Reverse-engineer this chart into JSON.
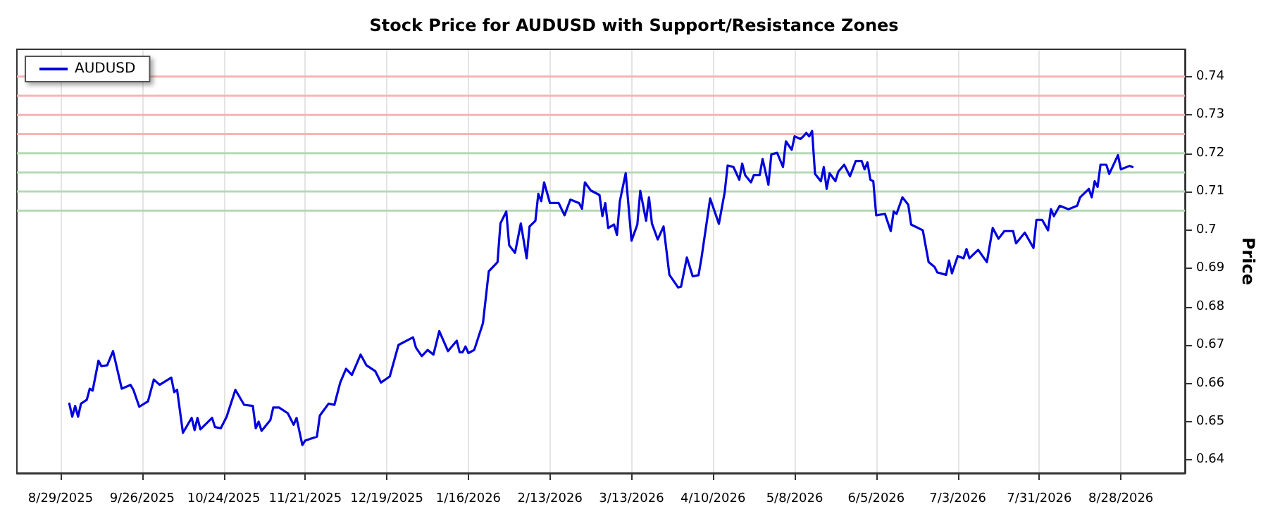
{
  "chart_data": {
    "type": "line",
    "title": "Stock Price for AUDUSD with Support/Resistance Zones",
    "ylabel": "Price",
    "x": [
      "2025-09-01",
      "2025-09-02",
      "2025-09-03",
      "2025-09-04",
      "2025-09-05",
      "2025-09-07",
      "2025-09-08",
      "2025-09-09",
      "2025-09-11",
      "2025-09-12",
      "2025-09-14",
      "2025-09-16",
      "2025-09-19",
      "2025-09-22",
      "2025-09-23",
      "2025-09-25",
      "2025-09-28",
      "2025-09-30",
      "2025-10-02",
      "2025-10-06",
      "2025-10-07",
      "2025-10-08",
      "2025-10-10",
      "2025-10-13",
      "2025-10-14",
      "2025-10-15",
      "2025-10-16",
      "2025-10-20",
      "2025-10-21",
      "2025-10-23",
      "2025-10-25",
      "2025-10-28",
      "2025-10-31",
      "2025-11-03",
      "2025-11-04",
      "2025-11-05",
      "2025-11-06",
      "2025-11-09",
      "2025-11-10",
      "2025-11-12",
      "2025-11-15",
      "2025-11-17",
      "2025-11-18",
      "2025-11-20",
      "2025-11-21",
      "2025-11-25",
      "2025-11-26",
      "2025-11-29",
      "2025-12-01",
      "2025-12-03",
      "2025-12-05",
      "2025-12-07",
      "2025-12-10",
      "2025-12-12",
      "2025-12-15",
      "2025-12-17",
      "2025-12-20",
      "2025-12-23",
      "2025-12-28",
      "2025-12-29",
      "2025-12-31",
      "2026-01-02",
      "2026-01-04",
      "2026-01-06",
      "2026-01-09",
      "2026-01-12",
      "2026-01-13",
      "2026-01-14",
      "2026-01-15",
      "2026-01-16",
      "2026-01-18",
      "2026-01-21",
      "2026-01-23",
      "2026-01-26",
      "2026-01-27",
      "2026-01-29",
      "2026-01-30",
      "2026-02-01",
      "2026-02-03",
      "2026-02-05",
      "2026-02-06",
      "2026-02-08",
      "2026-02-09",
      "2026-02-10",
      "2026-02-11",
      "2026-02-13",
      "2026-02-16",
      "2026-02-18",
      "2026-02-20",
      "2026-02-23",
      "2026-02-24",
      "2026-02-25",
      "2026-02-27",
      "2026-03-02",
      "2026-03-03",
      "2026-03-04",
      "2026-03-05",
      "2026-03-07",
      "2026-03-08",
      "2026-03-09",
      "2026-03-11",
      "2026-03-13",
      "2026-03-15",
      "2026-03-16",
      "2026-03-18",
      "2026-03-19",
      "2026-03-20",
      "2026-03-22",
      "2026-03-24",
      "2026-03-26",
      "2026-03-29",
      "2026-03-30",
      "2026-04-01",
      "2026-04-03",
      "2026-04-05",
      "2026-04-06",
      "2026-04-09",
      "2026-04-12",
      "2026-04-14",
      "2026-04-15",
      "2026-04-17",
      "2026-04-19",
      "2026-04-20",
      "2026-04-21",
      "2026-04-23",
      "2026-04-24",
      "2026-04-26",
      "2026-04-27",
      "2026-04-29",
      "2026-04-30",
      "2026-05-02",
      "2026-05-04",
      "2026-05-05",
      "2026-05-07",
      "2026-05-08",
      "2026-05-10",
      "2026-05-11",
      "2026-05-12",
      "2026-05-13",
      "2026-05-14",
      "2026-05-15",
      "2026-05-17",
      "2026-05-18",
      "2026-05-19",
      "2026-05-20",
      "2026-05-22",
      "2026-05-23",
      "2026-05-25",
      "2026-05-27",
      "2026-05-29",
      "2026-05-31",
      "2026-06-01",
      "2026-06-02",
      "2026-06-03",
      "2026-06-04",
      "2026-06-05",
      "2026-06-08",
      "2026-06-10",
      "2026-06-11",
      "2026-06-12",
      "2026-06-14",
      "2026-06-16",
      "2026-06-17",
      "2026-06-21",
      "2026-06-23",
      "2026-06-25",
      "2026-06-26",
      "2026-06-29",
      "2026-06-30",
      "2026-07-01",
      "2026-07-03",
      "2026-07-05",
      "2026-07-06",
      "2026-07-07",
      "2026-07-10",
      "2026-07-13",
      "2026-07-15",
      "2026-07-17",
      "2026-07-19",
      "2026-07-22",
      "2026-07-23",
      "2026-07-26",
      "2026-07-29",
      "2026-07-30",
      "2026-08-01",
      "2026-08-03",
      "2026-08-04",
      "2026-08-05",
      "2026-08-07",
      "2026-08-10",
      "2026-08-13",
      "2026-08-14",
      "2026-08-17",
      "2026-08-18",
      "2026-08-19",
      "2026-08-20",
      "2026-08-21",
      "2026-08-23",
      "2026-08-24",
      "2026-08-27",
      "2026-08-28",
      "2026-08-31",
      "2026-09-01"
    ],
    "series": [
      {
        "name": "AUDUSD",
        "color": "#0000dd",
        "values": [
          0.6547,
          0.6513,
          0.6541,
          0.6513,
          0.6547,
          0.6557,
          0.6586,
          0.6581,
          0.6659,
          0.6645,
          0.6647,
          0.6684,
          0.6586,
          0.6596,
          0.6583,
          0.6539,
          0.6553,
          0.661,
          0.6596,
          0.6615,
          0.6577,
          0.6583,
          0.6471,
          0.651,
          0.6478,
          0.651,
          0.648,
          0.651,
          0.6486,
          0.6483,
          0.6513,
          0.6583,
          0.6544,
          0.6541,
          0.6483,
          0.65,
          0.6476,
          0.6504,
          0.6537,
          0.6537,
          0.6522,
          0.6492,
          0.651,
          0.6439,
          0.6451,
          0.6461,
          0.6516,
          0.6547,
          0.6544,
          0.6602,
          0.6638,
          0.6622,
          0.6675,
          0.6647,
          0.6632,
          0.6602,
          0.6618,
          0.67,
          0.672,
          0.6693,
          0.6671,
          0.6687,
          0.6675,
          0.6736,
          0.6684,
          0.6711,
          0.6681,
          0.6681,
          0.6696,
          0.6679,
          0.6687,
          0.6757,
          0.6892,
          0.6916,
          0.7017,
          0.7048,
          0.696,
          0.694,
          0.7017,
          0.6926,
          0.7009,
          0.7024,
          0.7094,
          0.7075,
          0.7124,
          0.707,
          0.707,
          0.7038,
          0.7079,
          0.707,
          0.7055,
          0.7124,
          0.7103,
          0.7091,
          0.7036,
          0.707,
          0.7005,
          0.7014,
          0.6987,
          0.7075,
          0.7148,
          0.6972,
          0.7014,
          0.7102,
          0.7024,
          0.7085,
          0.7017,
          0.6975,
          0.7009,
          0.6883,
          0.685,
          0.6852,
          0.6928,
          0.6879,
          0.6882,
          0.6926,
          0.7082,
          0.7016,
          0.7099,
          0.7168,
          0.7164,
          0.7131,
          0.7173,
          0.7143,
          0.7124,
          0.7143,
          0.7143,
          0.7185,
          0.7118,
          0.7197,
          0.7201,
          0.7164,
          0.7231,
          0.7209,
          0.7244,
          0.7237,
          0.7244,
          0.7253,
          0.7244,
          0.7258,
          0.7146,
          0.7127,
          0.7164,
          0.7107,
          0.7148,
          0.7127,
          0.7152,
          0.717,
          0.714,
          0.718,
          0.718,
          0.7158,
          0.7176,
          0.7131,
          0.7127,
          0.7038,
          0.7042,
          0.6997,
          0.7048,
          0.7042,
          0.7085,
          0.7066,
          0.7014,
          0.6999,
          0.6916,
          0.6904,
          0.6889,
          0.6883,
          0.692,
          0.6887,
          0.6932,
          0.6926,
          0.695,
          0.6926,
          0.6948,
          0.6916,
          0.7005,
          0.6977,
          0.6997,
          0.6997,
          0.6965,
          0.6993,
          0.6953,
          0.7026,
          0.7026,
          0.6999,
          0.7054,
          0.7036,
          0.7063,
          0.7054,
          0.7063,
          0.7085,
          0.7107,
          0.7085,
          0.7127,
          0.7112,
          0.717,
          0.717,
          0.7146,
          0.7195,
          0.7158,
          0.7167,
          0.7164
        ]
      }
    ],
    "xlim": [
      "2025-08-14",
      "2026-09-19"
    ],
    "xticks": [
      {
        "value": "2025-08-29",
        "label": "8/29/2025"
      },
      {
        "value": "2025-09-26",
        "label": "9/26/2025"
      },
      {
        "value": "2025-10-24",
        "label": "10/24/2025"
      },
      {
        "value": "2025-11-21",
        "label": "11/21/2025"
      },
      {
        "value": "2025-12-19",
        "label": "12/19/2025"
      },
      {
        "value": "2026-01-16",
        "label": "1/16/2026"
      },
      {
        "value": "2026-02-13",
        "label": "2/13/2026"
      },
      {
        "value": "2026-03-13",
        "label": "3/13/2026"
      },
      {
        "value": "2026-04-10",
        "label": "4/10/2026"
      },
      {
        "value": "2026-05-08",
        "label": "5/8/2026"
      },
      {
        "value": "2026-06-05",
        "label": "6/5/2026"
      },
      {
        "value": "2026-07-03",
        "label": "7/3/2026"
      },
      {
        "value": "2026-07-31",
        "label": "7/31/2026"
      },
      {
        "value": "2026-08-28",
        "label": "8/28/2026"
      }
    ],
    "ylim": [
      0.6366,
      0.7471
    ],
    "yticks": [
      0.64,
      0.65,
      0.66,
      0.67,
      0.68,
      0.69,
      0.7,
      0.71,
      0.72,
      0.73,
      0.74
    ],
    "ref_lines": [
      {
        "axis": "y",
        "value": 0.74,
        "color": "#f5b5b5"
      },
      {
        "axis": "y",
        "value": 0.735,
        "color": "#f5b5b5"
      },
      {
        "axis": "y",
        "value": 0.73,
        "color": "#f5b5b5"
      },
      {
        "axis": "y",
        "value": 0.725,
        "color": "#f5b5b5"
      },
      {
        "axis": "y",
        "value": 0.72,
        "color": "#b5d9b5"
      },
      {
        "axis": "y",
        "value": 0.715,
        "color": "#b5d9b5"
      },
      {
        "axis": "y",
        "value": 0.71,
        "color": "#b5d9b5"
      },
      {
        "axis": "y",
        "value": 0.705,
        "color": "#b5d9b5"
      }
    ],
    "grid": "x",
    "legend": "top left",
    "marker": "none",
    "line_style": "solid"
  }
}
